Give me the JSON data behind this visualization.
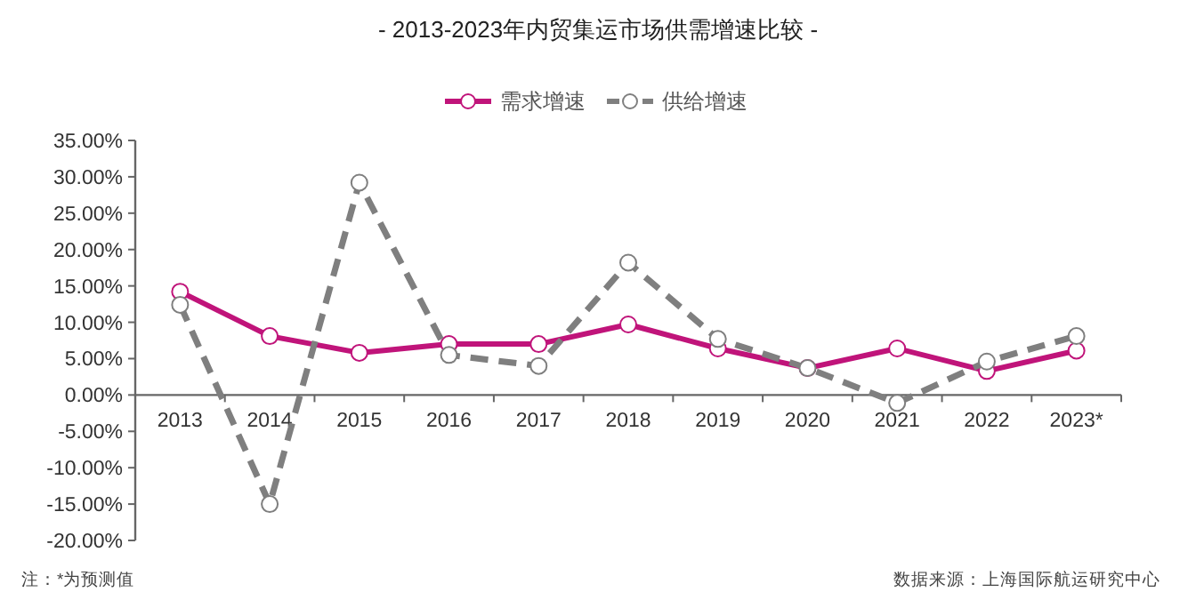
{
  "chart_data": {
    "type": "line",
    "title": "- 2013-2023年内贸集运市场供需增速比较 -",
    "categories": [
      "2013",
      "2014",
      "2015",
      "2016",
      "2017",
      "2018",
      "2019",
      "2020",
      "2021",
      "2022",
      "2023*"
    ],
    "series": [
      {
        "name": "需求增速",
        "color": "#c0147a",
        "line_style": "solid",
        "values": [
          14.2,
          8.1,
          5.8,
          7.0,
          7.0,
          9.7,
          6.4,
          3.7,
          6.4,
          3.3,
          6.1
        ]
      },
      {
        "name": "供给增速",
        "color": "#7f7f7f",
        "line_style": "dashed",
        "values": [
          12.4,
          -15.0,
          29.2,
          5.5,
          4.0,
          18.2,
          7.7,
          3.7,
          -1.1,
          4.6,
          8.1
        ]
      }
    ],
    "ylim": [
      -20,
      35
    ],
    "yticks": [
      {
        "value": -20,
        "label": "-20.00%"
      },
      {
        "value": -15,
        "label": "-15.00%"
      },
      {
        "value": -10,
        "label": "-10.00%"
      },
      {
        "value": -5,
        "label": "-5.00%"
      },
      {
        "value": 0,
        "label": "0.00%"
      },
      {
        "value": 5,
        "label": "5.00%"
      },
      {
        "value": 10,
        "label": "10.00%"
      },
      {
        "value": 15,
        "label": "15.00%"
      },
      {
        "value": 20,
        "label": "20.00%"
      },
      {
        "value": 25,
        "label": "25.00%"
      },
      {
        "value": 30,
        "label": "30.00%"
      },
      {
        "value": 35,
        "label": "35.00%"
      }
    ],
    "marker": "circle",
    "grid": false,
    "legend": "top",
    "annotations": [
      "注：*为预测值",
      "数据来源：上海国际航运研究中心"
    ]
  }
}
